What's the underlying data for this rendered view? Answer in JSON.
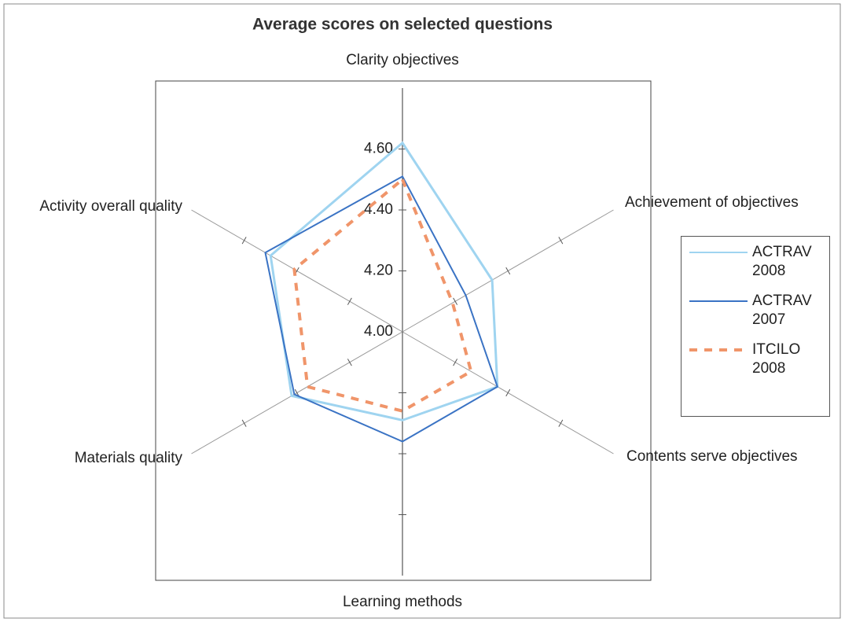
{
  "chart_data": {
    "type": "radar",
    "title": "Average scores on selected questions",
    "categories": [
      "Clarity objectives",
      "Achievement of objectives",
      "Contents serve objectives",
      "Learning methods",
      "Materials quality",
      "Activity overall quality"
    ],
    "series": [
      {
        "name": "ACTRAV 2008",
        "color": "#9fd4f0",
        "values": [
          4.62,
          4.34,
          4.36,
          4.29,
          4.42,
          4.5
        ]
      },
      {
        "name": "ACTRAV 2007",
        "color": "#3a73c4",
        "values": [
          4.51,
          4.24,
          4.36,
          4.36,
          4.41,
          4.52
        ]
      },
      {
        "name": "ITCILO 2008",
        "color": "#f0956a",
        "dashed": true,
        "values": [
          4.5,
          4.19,
          4.26,
          4.26,
          4.36,
          4.41
        ]
      }
    ],
    "rlim": [
      4.0,
      4.8
    ],
    "rticks": [
      {
        "value": 4.0,
        "label": "4.00"
      },
      {
        "value": 4.2,
        "label": "4.20"
      },
      {
        "value": 4.4,
        "label": "4.40"
      },
      {
        "value": 4.6,
        "label": "4.60"
      }
    ],
    "grid": false,
    "legend": "right"
  }
}
